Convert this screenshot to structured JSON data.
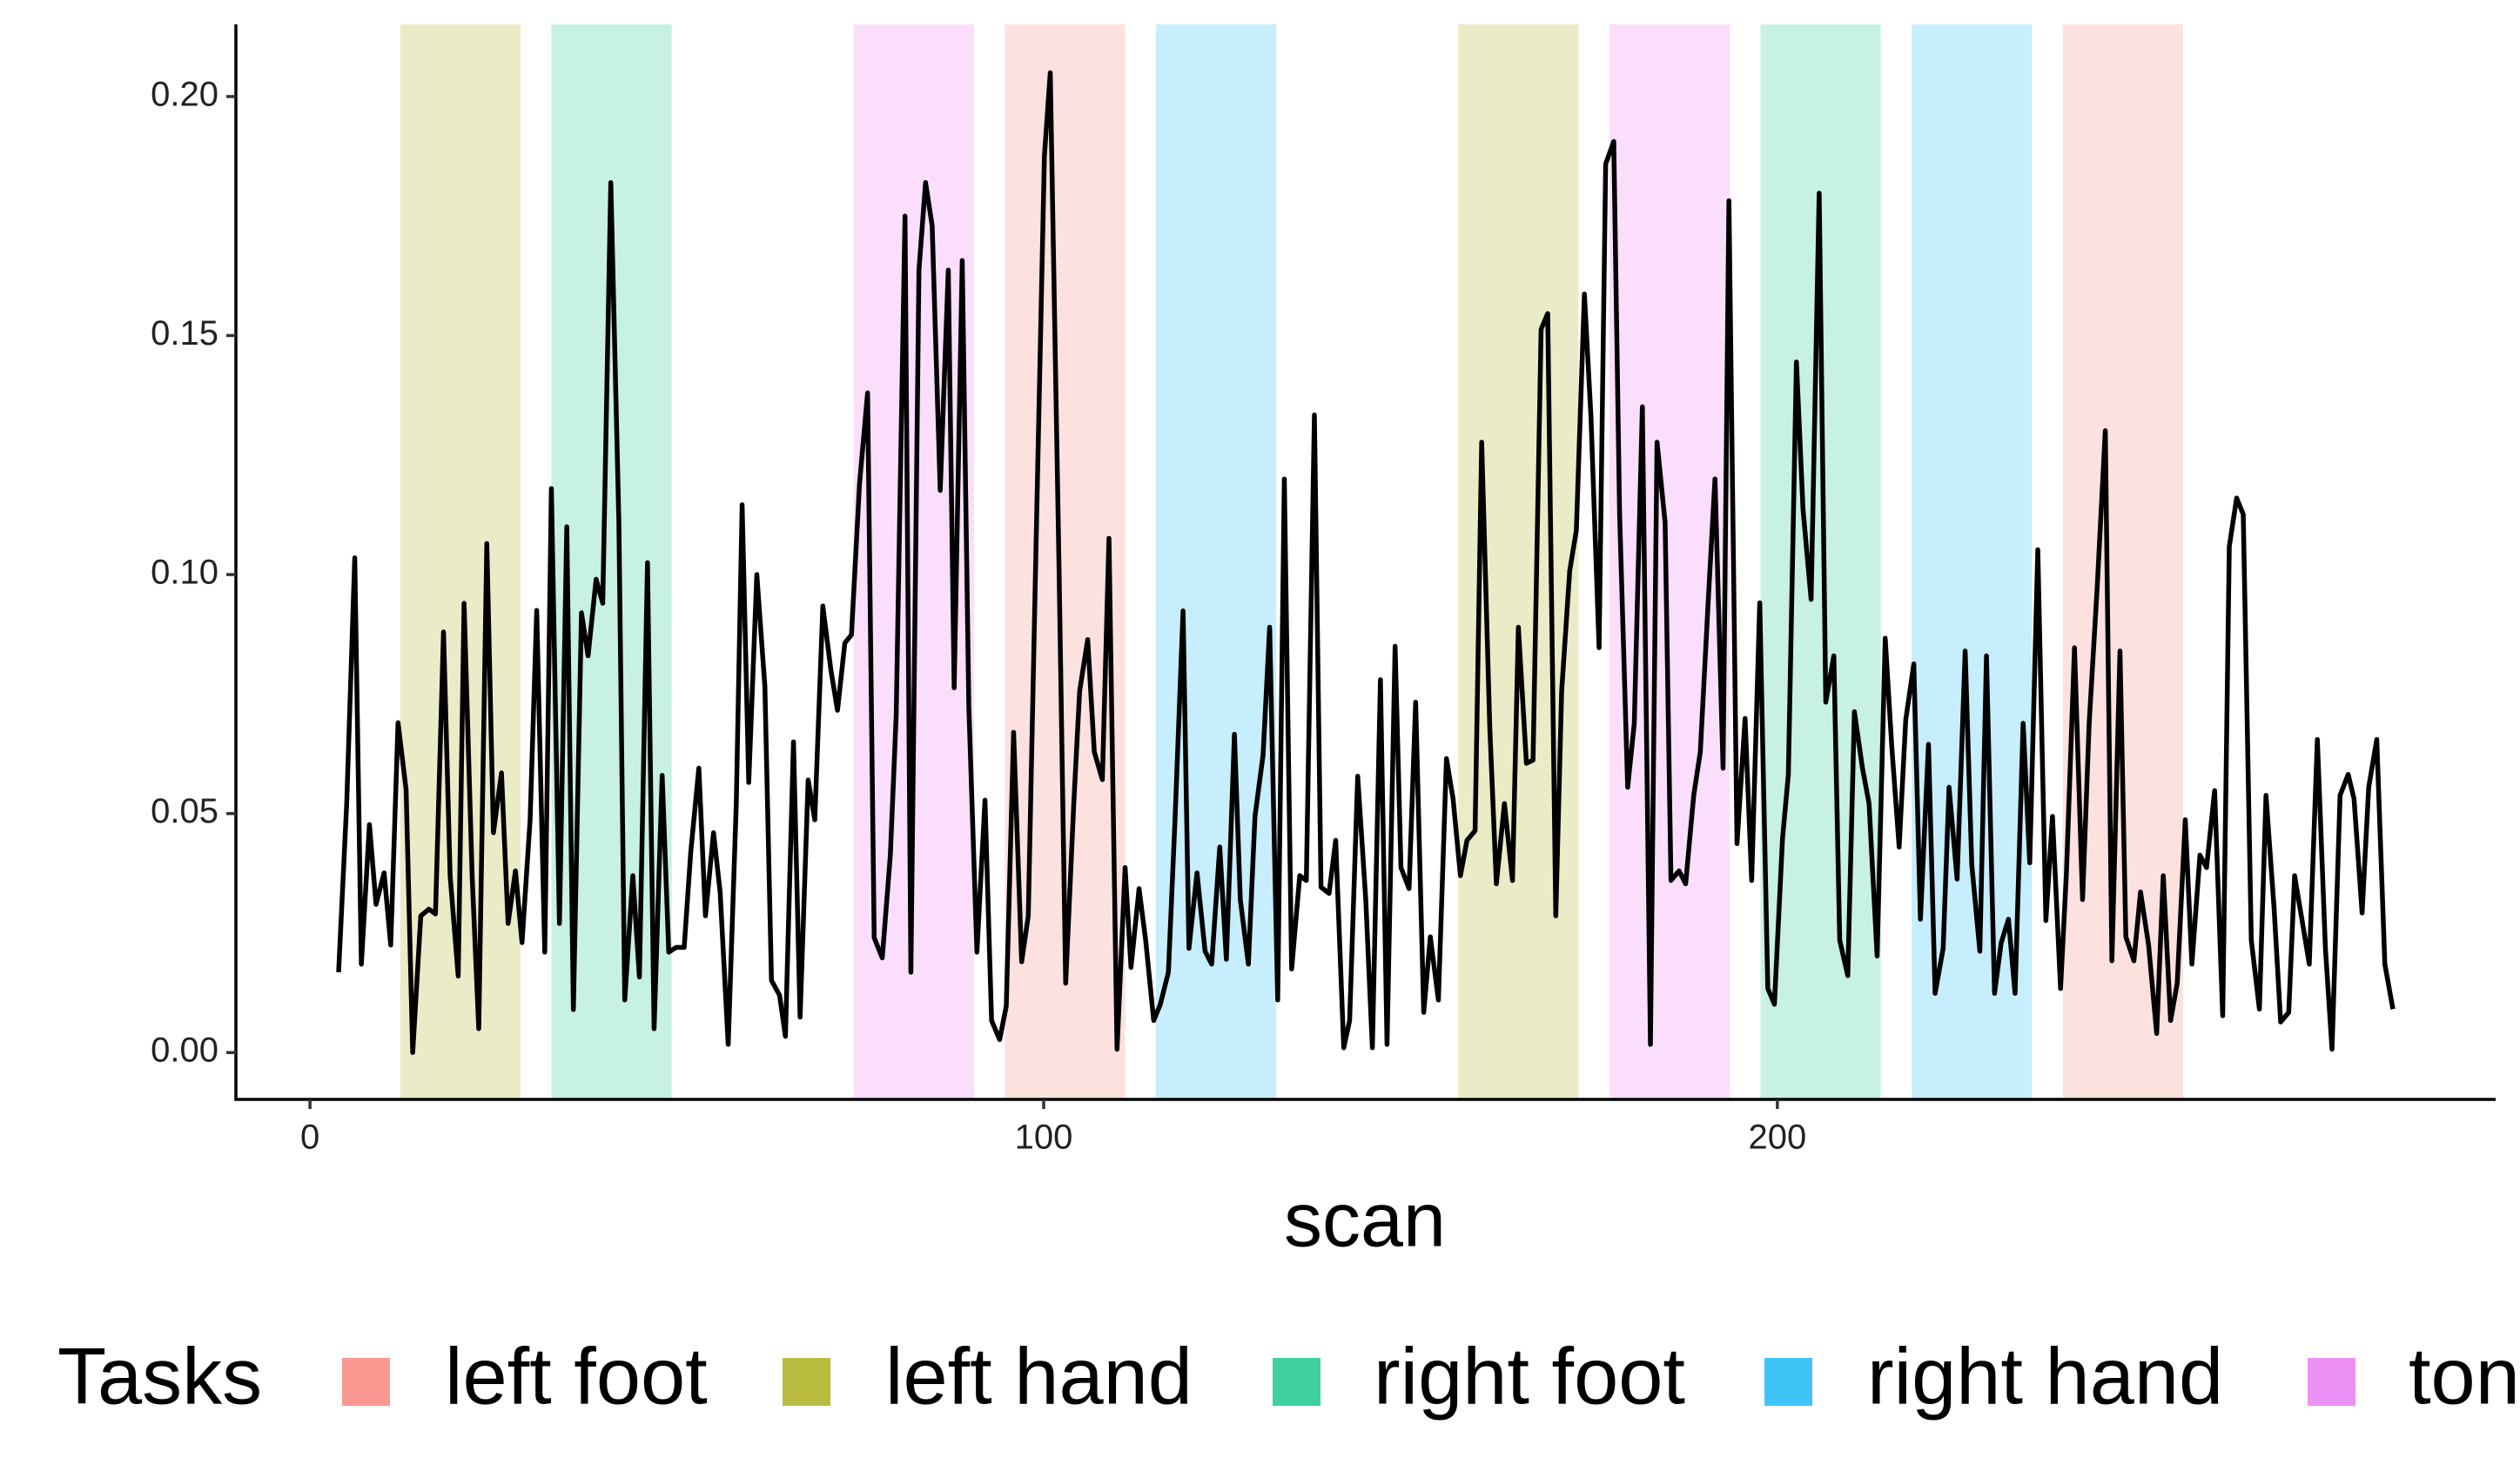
{
  "chart_data": {
    "type": "line",
    "xlabel": "scan",
    "legend_title": "Tasks",
    "xlim": [
      -10.1,
      297.9
    ],
    "ylim": [
      -0.0098,
      0.2151
    ],
    "xticks": [
      0,
      100,
      200
    ],
    "yticks": [
      {
        "value": 0,
        "label": "0.00"
      },
      {
        "value": 0.05,
        "label": "0.05"
      },
      {
        "value": 0.1,
        "label": "0.10"
      },
      {
        "value": 0.15,
        "label": "0.15"
      },
      {
        "value": 0.2,
        "label": "0.20"
      }
    ],
    "grid": false,
    "legend_position": "bottom",
    "series": [
      {
        "name": "left foot",
        "color": "#F8766D",
        "blocks": [
          [
            94.7,
            111.1
          ],
          [
            238.9,
            255.3
          ]
        ]
      },
      {
        "name": "left hand",
        "color": "#A3A500",
        "blocks": [
          [
            12.3,
            28.7
          ],
          [
            156.5,
            172.9
          ]
        ]
      },
      {
        "name": "right foot",
        "color": "#00BF7D",
        "blocks": [
          [
            32.9,
            49.3
          ],
          [
            197.7,
            214.1
          ]
        ]
      },
      {
        "name": "right hand",
        "color": "#00B0F6",
        "blocks": [
          [
            115.3,
            131.7
          ],
          [
            218.3,
            234.7
          ]
        ]
      },
      {
        "name": "tongue",
        "color": "#E76BF3",
        "blocks": [
          [
            74.1,
            90.5
          ],
          [
            177.1,
            193.5
          ]
        ]
      }
    ],
    "line": {
      "color": "#000000",
      "x": [
        3.9,
        5.0,
        6.1,
        7.0,
        8.1,
        9.0,
        10.1,
        11.0,
        12.0,
        13.1,
        14.0,
        15.1,
        16.2,
        17.1,
        18.2,
        19.1,
        20.2,
        21.0,
        22.1,
        23.0,
        24.1,
        25.0,
        26.1,
        27.0,
        28.0,
        28.9,
        30.0,
        30.9,
        32.0,
        32.9,
        34.0,
        35.0,
        35.9,
        37.0,
        37.9,
        39.0,
        39.9,
        41.0,
        42.1,
        42.9,
        44.0,
        44.9,
        46.0,
        46.9,
        48.0,
        48.9,
        49.9,
        51.0,
        51.9,
        53.0,
        53.9,
        55.0,
        55.9,
        57.0,
        58.1,
        58.9,
        59.8,
        60.9,
        62.0,
        62.9,
        64.0,
        64.8,
        65.9,
        66.8,
        67.9,
        68.8,
        69.9,
        71.0,
        71.9,
        72.9,
        73.8,
        74.9,
        76.0,
        76.9,
        78.0,
        79.1,
        79.9,
        81.1,
        81.9,
        83.0,
        83.9,
        84.8,
        85.9,
        87.0,
        87.8,
        88.9,
        89.8,
        90.9,
        92.0,
        92.9,
        94.0,
        94.9,
        95.9,
        97.0,
        97.9,
        99.0,
        100.1,
        100.9,
        102.1,
        103.0,
        104.1,
        104.9,
        106.0,
        106.9,
        108.0,
        108.9,
        110.0,
        111.1,
        111.9,
        113.0,
        113.9,
        115.0,
        115.9,
        117.0,
        117.9,
        119.0,
        119.8,
        120.9,
        122.0,
        122.9,
        124.0,
        124.9,
        126.0,
        126.8,
        127.9,
        128.8,
        129.9,
        130.8,
        131.9,
        132.8,
        133.8,
        134.9,
        135.8,
        136.9,
        137.8,
        138.9,
        139.8,
        140.9,
        141.7,
        142.8,
        143.9,
        144.8,
        145.9,
        146.8,
        147.9,
        148.7,
        149.8,
        150.7,
        151.8,
        152.7,
        153.8,
        154.9,
        155.8,
        156.8,
        157.7,
        158.8,
        159.7,
        160.8,
        161.7,
        162.8,
        163.9,
        164.7,
        165.8,
        166.7,
        167.8,
        168.7,
        169.8,
        170.6,
        171.7,
        172.6,
        173.7,
        174.6,
        175.7,
        176.6,
        177.7,
        178.5,
        179.6,
        180.5,
        181.6,
        182.7,
        183.6,
        184.7,
        185.5,
        186.6,
        187.5,
        188.6,
        189.5,
        190.6,
        191.5,
        192.6,
        193.4,
        194.5,
        195.6,
        196.5,
        197.6,
        198.7,
        199.6,
        200.7,
        201.5,
        202.6,
        203.5,
        204.6,
        205.7,
        206.6,
        207.7,
        208.5,
        209.6,
        210.5,
        211.6,
        212.5,
        213.6,
        214.7,
        215.6,
        216.6,
        217.5,
        218.6,
        219.5,
        220.6,
        221.5,
        222.6,
        223.4,
        224.5,
        225.6,
        226.5,
        227.6,
        228.5,
        229.6,
        230.5,
        231.5,
        232.4,
        233.5,
        234.4,
        235.5,
        236.6,
        237.5,
        238.6,
        239.4,
        240.5,
        241.6,
        242.5,
        243.6,
        244.7,
        245.6,
        246.7,
        247.5,
        248.6,
        249.5,
        250.6,
        251.7,
        252.6,
        253.6,
        254.5,
        255.6,
        256.5,
        257.6,
        258.5,
        259.6,
        260.7,
        261.6,
        262.6,
        263.5,
        264.6,
        265.7,
        266.6,
        267.7,
        268.6,
        269.7,
        270.5,
        271.6,
        272.5,
        273.6,
        274.7,
        275.6,
        276.7,
        277.8,
        278.6,
        279.7,
        280.6,
        281.7,
        282.8,
        283.9
      ],
      "values": [
        0.0168,
        0.052,
        0.1035,
        0.0185,
        0.0477,
        0.031,
        0.0376,
        0.0225,
        0.069,
        0.055,
        0.0,
        0.0286,
        0.03,
        0.029,
        0.088,
        0.037,
        0.016,
        0.094,
        0.037,
        0.005,
        0.1065,
        0.046,
        0.0585,
        0.027,
        0.038,
        0.023,
        0.0487,
        0.0925,
        0.021,
        0.118,
        0.027,
        0.11,
        0.009,
        0.092,
        0.083,
        0.099,
        0.094,
        0.182,
        0.111,
        0.011,
        0.037,
        0.0158,
        0.1025,
        0.005,
        0.058,
        0.021,
        0.022,
        0.022,
        0.042,
        0.0595,
        0.0286,
        0.046,
        0.0336,
        0.0017,
        0.052,
        0.1146,
        0.0565,
        0.1,
        0.0766,
        0.0151,
        0.012,
        0.0034,
        0.065,
        0.0074,
        0.057,
        0.0487,
        0.0934,
        0.08,
        0.0716,
        0.0857,
        0.0874,
        0.119,
        0.138,
        0.024,
        0.0198,
        0.0413,
        0.0706,
        0.175,
        0.0168,
        0.1637,
        0.182,
        0.173,
        0.1176,
        0.1637,
        0.0763,
        0.1657,
        0.0723,
        0.021,
        0.0528,
        0.0067,
        0.0027,
        0.0097,
        0.067,
        0.019,
        0.0286,
        0.109,
        0.1876,
        0.205,
        0.1008,
        0.0145,
        0.052,
        0.0756,
        0.0864,
        0.0629,
        0.0571,
        0.1076,
        0.0007,
        0.0387,
        0.0178,
        0.0343,
        0.0235,
        0.0067,
        0.0101,
        0.0168,
        0.0487,
        0.0924,
        0.0218,
        0.0376,
        0.0212,
        0.0185,
        0.043,
        0.0195,
        0.0666,
        0.032,
        0.0185,
        0.0494,
        0.0622,
        0.089,
        0.011,
        0.12,
        0.0175,
        0.037,
        0.036,
        0.1334,
        0.0346,
        0.0333,
        0.0444,
        0.001,
        0.0067,
        0.0578,
        0.032,
        0.001,
        0.078,
        0.0017,
        0.085,
        0.0387,
        0.0343,
        0.0733,
        0.0084,
        0.0242,
        0.011,
        0.0615,
        0.0531,
        0.037,
        0.0444,
        0.0464,
        0.1277,
        0.0682,
        0.0353,
        0.0521,
        0.036,
        0.089,
        0.0605,
        0.0612,
        0.1513,
        0.1546,
        0.0286,
        0.0756,
        0.1008,
        0.1092,
        0.1587,
        0.1328,
        0.0847,
        0.1859,
        0.1906,
        0.1126,
        0.0555,
        0.0689,
        0.1351,
        0.0017,
        0.1277,
        0.1109,
        0.036,
        0.038,
        0.0353,
        0.0538,
        0.0629,
        0.0951,
        0.12,
        0.0595,
        0.1782,
        0.0437,
        0.0699,
        0.036,
        0.0941,
        0.0134,
        0.0101,
        0.0447,
        0.0582,
        0.1445,
        0.1136,
        0.0948,
        0.1798,
        0.0733,
        0.083,
        0.0235,
        0.0161,
        0.0713,
        0.0595,
        0.0521,
        0.0202,
        0.0867,
        0.0639,
        0.043,
        0.0696,
        0.0813,
        0.0279,
        0.0645,
        0.0124,
        0.0218,
        0.0555,
        0.0363,
        0.084,
        0.0393,
        0.0212,
        0.083,
        0.0124,
        0.0229,
        0.0279,
        0.0124,
        0.0689,
        0.0397,
        0.1052,
        0.0276,
        0.0494,
        0.0134,
        0.0376,
        0.0847,
        0.032,
        0.0689,
        0.0975,
        0.1301,
        0.0192,
        0.084,
        0.0242,
        0.0192,
        0.0336,
        0.0225,
        0.004,
        0.037,
        0.0067,
        0.0145,
        0.0487,
        0.0185,
        0.0413,
        0.0387,
        0.0548,
        0.0077,
        0.1059,
        0.116,
        0.1126,
        0.0235,
        0.0091,
        0.0538,
        0.0303,
        0.0064,
        0.0084,
        0.037,
        0.0269,
        0.0185,
        0.0655,
        0.0218,
        0.0007,
        0.0538,
        0.0582,
        0.0531,
        0.0292,
        0.0555,
        0.0655,
        0.0185,
        0.0091
      ]
    }
  }
}
